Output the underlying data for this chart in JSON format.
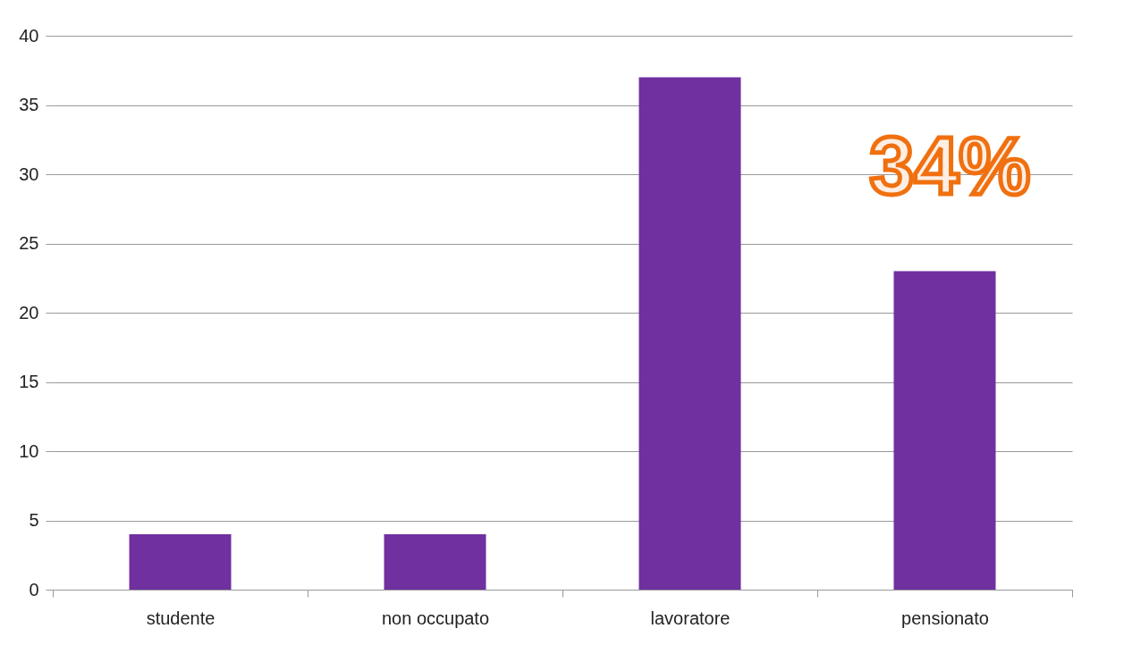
{
  "chart_data": {
    "type": "bar",
    "categories": [
      "studente",
      "non occupato",
      "lavoratore",
      "pensionato"
    ],
    "values": [
      4,
      4,
      37,
      23
    ],
    "color": "#7030a0",
    "ylim": [
      0,
      40
    ],
    "yticks": [
      0,
      5,
      10,
      15,
      20,
      25,
      30,
      35,
      40
    ],
    "grid": "y",
    "annotations": [
      "34%"
    ]
  }
}
